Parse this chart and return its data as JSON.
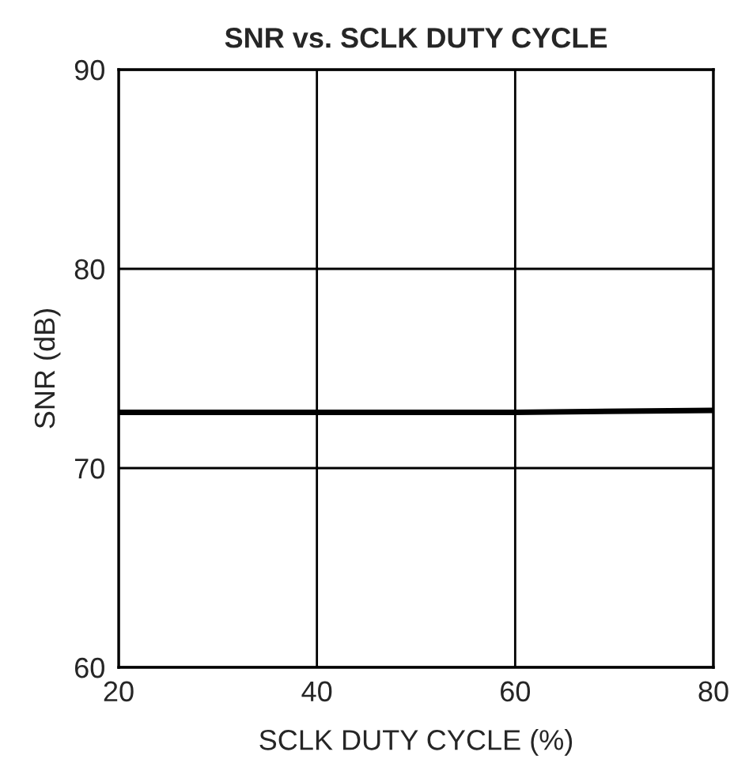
{
  "chart_data": {
    "type": "line",
    "title": "SNR vs. SCLK DUTY CYCLE",
    "xlabel": "SCLK DUTY CYCLE (%)",
    "ylabel": "SNR (dB)",
    "x": [
      20,
      40,
      60,
      80
    ],
    "series": [
      {
        "color": "#000000",
        "values": [
          72.8,
          72.8,
          72.8,
          72.9
        ]
      }
    ],
    "xlim": [
      20,
      80
    ],
    "xticks": [
      20,
      40,
      60,
      80
    ],
    "ylim": [
      60,
      90
    ],
    "yticks": [
      60,
      70,
      80,
      90
    ],
    "grid": true,
    "marker": "none",
    "line_style": "solid"
  }
}
